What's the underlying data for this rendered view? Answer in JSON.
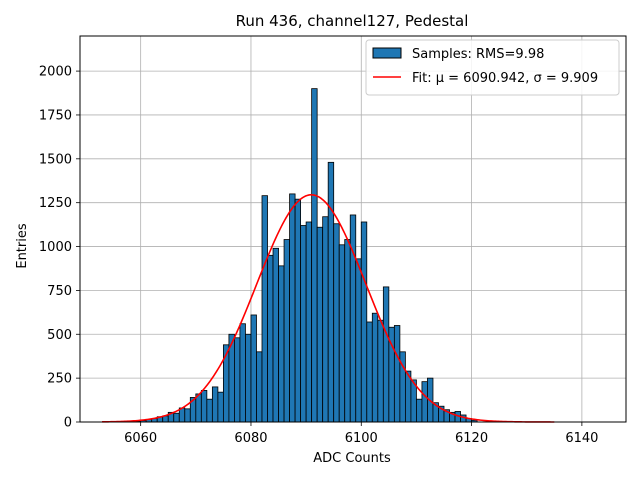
{
  "chart_data": {
    "type": "bar",
    "title": "Run 436, channel127, Pedestal",
    "xlabel": "ADC Counts",
    "ylabel": "Entries",
    "xlim": [
      6049,
      6148
    ],
    "ylim": [
      0,
      2200
    ],
    "xticks": [
      6060,
      6080,
      6100,
      6120,
      6140
    ],
    "yticks": [
      0,
      250,
      500,
      750,
      1000,
      1250,
      1500,
      1750,
      2000
    ],
    "grid": true,
    "legend_position": "top-right",
    "colors": {
      "bar": "#1f77b4",
      "bar_edge": "#000000",
      "fit": "#ff0000",
      "grid": "#b0b0b0"
    },
    "histogram": {
      "name": "Samples: RMS=9.98",
      "bin_width": 1,
      "bins": [
        {
          "x": 6059,
          "y": 5
        },
        {
          "x": 6060,
          "y": 8
        },
        {
          "x": 6061,
          "y": 15
        },
        {
          "x": 6062,
          "y": 20
        },
        {
          "x": 6063,
          "y": 30
        },
        {
          "x": 6064,
          "y": 35
        },
        {
          "x": 6065,
          "y": 55
        },
        {
          "x": 6066,
          "y": 50
        },
        {
          "x": 6067,
          "y": 80
        },
        {
          "x": 6068,
          "y": 75
        },
        {
          "x": 6069,
          "y": 140
        },
        {
          "x": 6070,
          "y": 160
        },
        {
          "x": 6071,
          "y": 180
        },
        {
          "x": 6072,
          "y": 130
        },
        {
          "x": 6073,
          "y": 200
        },
        {
          "x": 6074,
          "y": 170
        },
        {
          "x": 6075,
          "y": 440
        },
        {
          "x": 6076,
          "y": 500
        },
        {
          "x": 6077,
          "y": 480
        },
        {
          "x": 6078,
          "y": 560
        },
        {
          "x": 6079,
          "y": 500
        },
        {
          "x": 6080,
          "y": 610
        },
        {
          "x": 6081,
          "y": 400
        },
        {
          "x": 6082,
          "y": 1290
        },
        {
          "x": 6083,
          "y": 950
        },
        {
          "x": 6084,
          "y": 990
        },
        {
          "x": 6085,
          "y": 890
        },
        {
          "x": 6086,
          "y": 1040
        },
        {
          "x": 6087,
          "y": 1300
        },
        {
          "x": 6088,
          "y": 1270
        },
        {
          "x": 6089,
          "y": 1120
        },
        {
          "x": 6090,
          "y": 1140
        },
        {
          "x": 6091,
          "y": 1900
        },
        {
          "x": 6092,
          "y": 1110
        },
        {
          "x": 6093,
          "y": 1170
        },
        {
          "x": 6094,
          "y": 1480
        },
        {
          "x": 6095,
          "y": 1130
        },
        {
          "x": 6096,
          "y": 1010
        },
        {
          "x": 6097,
          "y": 1040
        },
        {
          "x": 6098,
          "y": 1180
        },
        {
          "x": 6099,
          "y": 930
        },
        {
          "x": 6100,
          "y": 1140
        },
        {
          "x": 6101,
          "y": 570
        },
        {
          "x": 6102,
          "y": 620
        },
        {
          "x": 6103,
          "y": 580
        },
        {
          "x": 6104,
          "y": 770
        },
        {
          "x": 6105,
          "y": 540
        },
        {
          "x": 6106,
          "y": 550
        },
        {
          "x": 6107,
          "y": 400
        },
        {
          "x": 6108,
          "y": 290
        },
        {
          "x": 6109,
          "y": 240
        },
        {
          "x": 6110,
          "y": 130
        },
        {
          "x": 6111,
          "y": 230
        },
        {
          "x": 6112,
          "y": 250
        },
        {
          "x": 6113,
          "y": 110
        },
        {
          "x": 6114,
          "y": 90
        },
        {
          "x": 6115,
          "y": 70
        },
        {
          "x": 6116,
          "y": 55
        },
        {
          "x": 6117,
          "y": 60
        },
        {
          "x": 6118,
          "y": 40
        },
        {
          "x": 6119,
          "y": 20
        },
        {
          "x": 6120,
          "y": 10
        }
      ]
    },
    "fit": {
      "name": "Fit: μ = 6090.942, σ = 9.909",
      "mu": 6090.942,
      "sigma": 9.909,
      "amplitude": 1295,
      "x_range": [
        6053,
        6135
      ]
    }
  }
}
